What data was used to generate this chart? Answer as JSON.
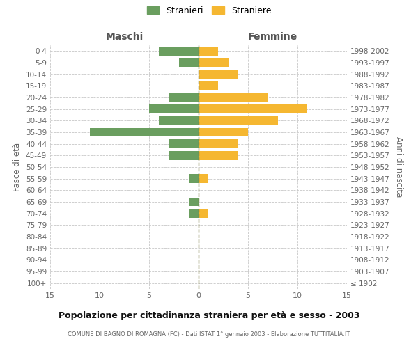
{
  "age_groups": [
    "0-4",
    "5-9",
    "10-14",
    "15-19",
    "20-24",
    "25-29",
    "30-34",
    "35-39",
    "40-44",
    "45-49",
    "50-54",
    "55-59",
    "60-64",
    "65-69",
    "70-74",
    "75-79",
    "80-84",
    "85-89",
    "90-94",
    "95-99",
    "100+"
  ],
  "birth_years": [
    "1998-2002",
    "1993-1997",
    "1988-1992",
    "1983-1987",
    "1978-1982",
    "1973-1977",
    "1968-1972",
    "1963-1967",
    "1958-1962",
    "1953-1957",
    "1948-1952",
    "1943-1947",
    "1938-1942",
    "1933-1937",
    "1928-1932",
    "1923-1927",
    "1918-1922",
    "1913-1917",
    "1908-1912",
    "1903-1907",
    "≤ 1902"
  ],
  "males": [
    4,
    2,
    0,
    0,
    3,
    5,
    4,
    11,
    3,
    3,
    0,
    1,
    0,
    1,
    1,
    0,
    0,
    0,
    0,
    0,
    0
  ],
  "females": [
    2,
    3,
    4,
    2,
    7,
    11,
    8,
    5,
    4,
    4,
    0,
    1,
    0,
    0,
    1,
    0,
    0,
    0,
    0,
    0,
    0
  ],
  "male_color": "#6a9e5f",
  "female_color": "#f5b731",
  "background_color": "#ffffff",
  "grid_color": "#c8c8c8",
  "center_line_color": "#7a7a40",
  "title": "Popolazione per cittadinanza straniera per età e sesso - 2003",
  "subtitle": "COMUNE DI BAGNO DI ROMAGNA (FC) - Dati ISTAT 1° gennaio 2003 - Elaborazione TUTTITALIA.IT",
  "ylabel_left": "Fasce di età",
  "ylabel_right": "Anni di nascita",
  "xlabel_maschi": "Maschi",
  "xlabel_femmine": "Femmine",
  "xlim": 15,
  "legend_labels": [
    "Stranieri",
    "Straniere"
  ]
}
